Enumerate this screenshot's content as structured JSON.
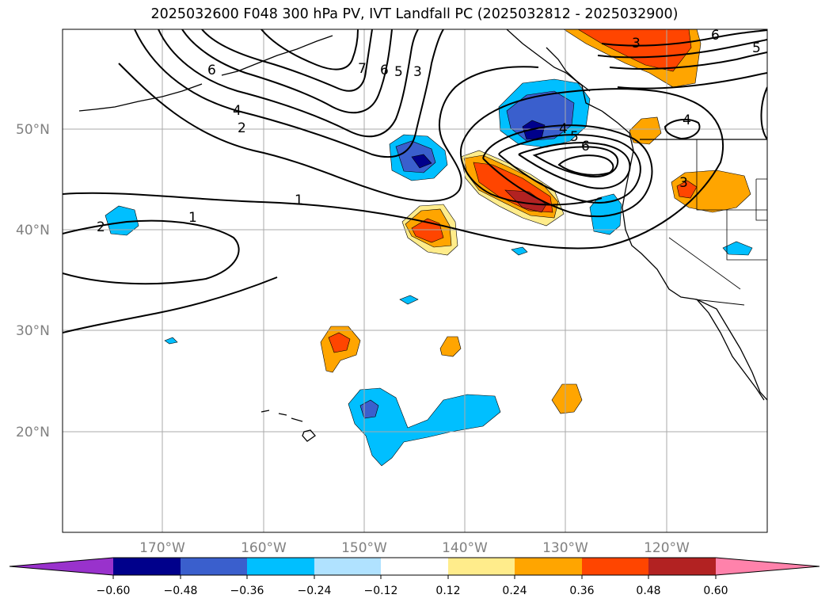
{
  "title": "2025032600 F048 300 hPa PV, IVT Landfall PC (2025032812 - 2025032900)",
  "lat_labels": [
    "50°N",
    "40°N",
    "30°N",
    "20°N"
  ],
  "lon_labels": [
    "170°W",
    "160°W",
    "150°W",
    "140°W",
    "130°W",
    "120°W"
  ],
  "colorbar": {
    "colors": [
      "#9932cc",
      "#00008b",
      "#3a5fcd",
      "#00bfff",
      "#b0e2ff",
      "#ffffff",
      "#ffec8b",
      "#ffa500",
      "#ff4500",
      "#b22222",
      "#ff82ab"
    ],
    "tick_labels": [
      "−0.60",
      "−0.48",
      "−0.36",
      "−0.24",
      "−0.12",
      "0.12",
      "0.24",
      "0.36",
      "0.48",
      "0.60"
    ]
  },
  "contour_labels": [
    "1",
    "1",
    "2",
    "2",
    "3",
    "4",
    "4",
    "4",
    "5",
    "5",
    "6",
    "6",
    "6",
    "7",
    "3",
    "5",
    "6",
    "3"
  ]
}
